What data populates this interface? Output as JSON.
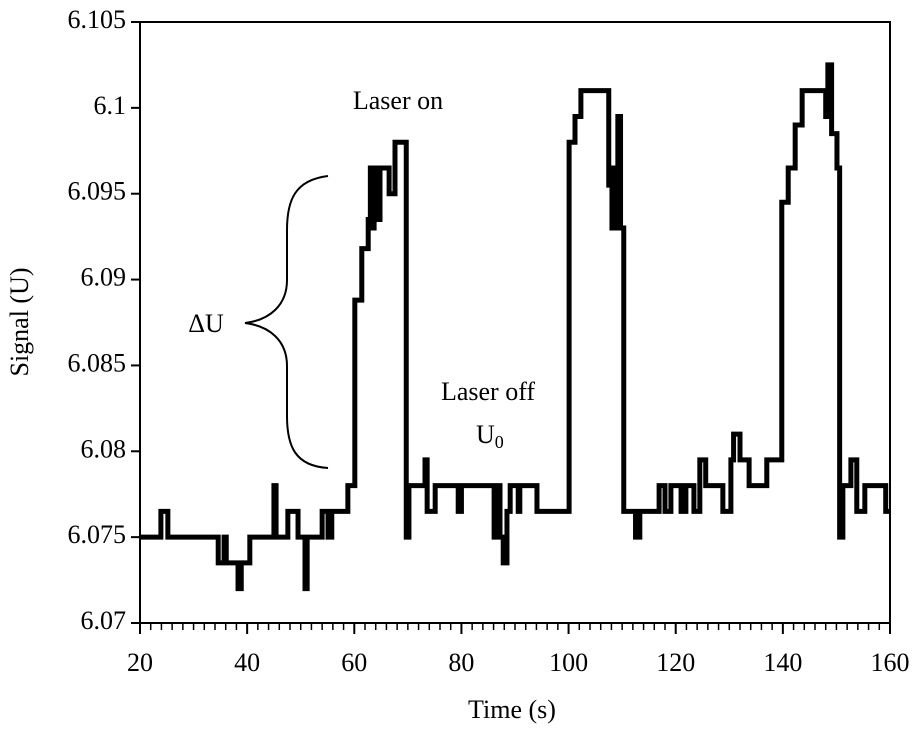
{
  "chart_data": {
    "type": "step-line",
    "xlabel": "Time (s)",
    "ylabel": "Signal (U)",
    "xlim": [
      20,
      160
    ],
    "ylim": [
      6.07,
      6.105
    ],
    "xticks": [
      20,
      40,
      60,
      80,
      100,
      120,
      140,
      160
    ],
    "yticks": [
      6.07,
      6.075,
      6.08,
      6.085,
      6.09,
      6.095,
      6.1,
      6.105
    ],
    "annotations": {
      "laser_on": "Laser on",
      "delta_u": "ΔU",
      "laser_off": "Laser off",
      "u0": {
        "text": "U",
        "subscript": "0"
      }
    },
    "series": [
      {
        "color": "#000000",
        "x": [
          20,
          23.9,
          25.2,
          34.6,
          35.7,
          36.1,
          38.3,
          38.9,
          40.5,
          45,
          45.4,
          47.6,
          49.5,
          50.8,
          51.2,
          54,
          55.1,
          55.8,
          58.8,
          60.1,
          61.4,
          62.6,
          63,
          63.3,
          63.7,
          64.4,
          64.8,
          65.9,
          66.5,
          67.6,
          69.7,
          70.2,
          73.2,
          73.6,
          75.1,
          79.4,
          80,
          86.1,
          86.7,
          87.2,
          87.8,
          88.5,
          89.1,
          90.6,
          90.9,
          94.1,
          100.1,
          101.2,
          102.3,
          107.5,
          108.1,
          108.4,
          108.8,
          109.2,
          109.7,
          110.3,
          112.5,
          113.3,
          116.9,
          118,
          119.1,
          121,
          121.9,
          123.4,
          124.5,
          125.6,
          128.8,
          130.3,
          130.8,
          132,
          133.7,
          137,
          139.8,
          141,
          142.3,
          143.6,
          148,
          148.4,
          149.1,
          150.1,
          150.6,
          151.2,
          152.7,
          153.8,
          155.3,
          159.2,
          160
        ],
        "values": [
          6.075,
          6.0765,
          6.075,
          6.0735,
          6.075,
          6.0735,
          6.072,
          6.0735,
          6.075,
          6.078,
          6.075,
          6.0765,
          6.075,
          6.072,
          6.075,
          6.0765,
          6.075,
          6.0765,
          6.078,
          6.0888,
          6.0918,
          6.0935,
          6.0965,
          6.093,
          6.0965,
          6.0935,
          6.0965,
          6.0965,
          6.095,
          6.098,
          6.075,
          6.078,
          6.0795,
          6.0765,
          6.078,
          6.0765,
          6.078,
          6.075,
          6.078,
          6.075,
          6.0735,
          6.0765,
          6.078,
          6.0765,
          6.078,
          6.0765,
          6.098,
          6.0995,
          6.101,
          6.0955,
          6.093,
          6.0965,
          6.093,
          6.0995,
          6.093,
          6.0765,
          6.075,
          6.0765,
          6.078,
          6.0765,
          6.078,
          6.0765,
          6.078,
          6.0765,
          6.0795,
          6.078,
          6.0765,
          6.0795,
          6.081,
          6.0795,
          6.078,
          6.0795,
          6.0945,
          6.0965,
          6.099,
          6.101,
          6.0995,
          6.1025,
          6.0985,
          6.0965,
          6.075,
          6.078,
          6.0795,
          6.0765,
          6.078,
          6.0765,
          6.0765
        ]
      }
    ]
  }
}
